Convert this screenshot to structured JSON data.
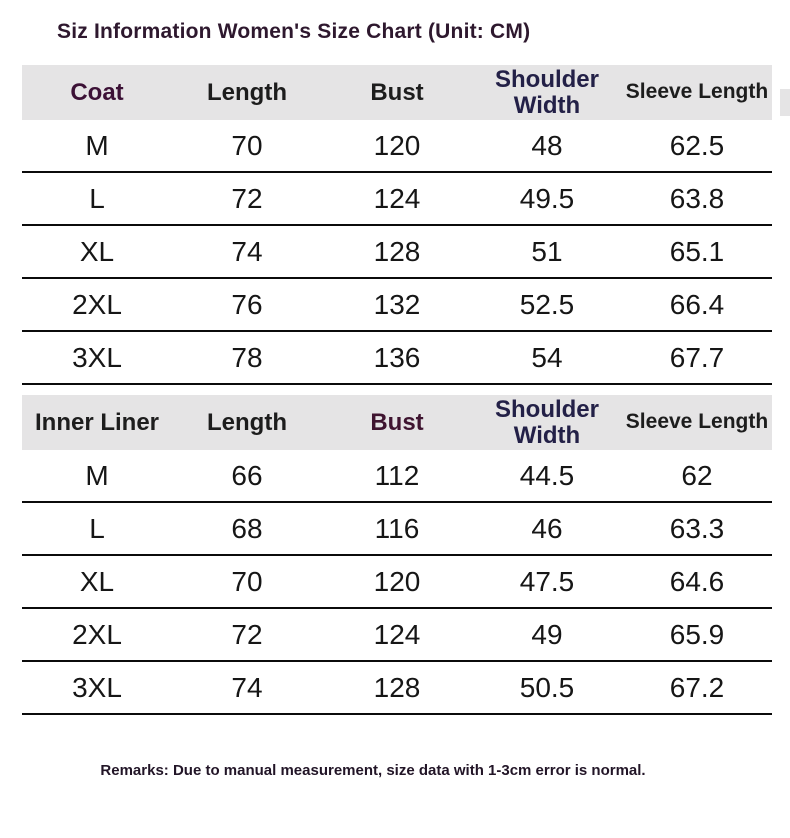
{
  "title": "Siz Information Women's Size Chart (Unit: CM)",
  "remarks": "Remarks: Due to manual measurement, size data with 1-3cm error is normal.",
  "colors": {
    "header_row_bg": "#e5e4e5",
    "title_text": "#2e182e",
    "row_line": "#0b0b0b",
    "data_text": "#161616",
    "coat_header_text": "#3c1136",
    "inner_liner_header_text": "#1d1d1d",
    "shoulder_width_header_text": "#232047",
    "bust_inner_header_text": "#3f1430",
    "black_header_text": "#1d1d1d"
  },
  "tables": [
    {
      "headers": [
        {
          "label": "Coat",
          "color": "#3c1136"
        },
        {
          "label": "Length",
          "color": "#1d1d1d"
        },
        {
          "label": "Bust",
          "color": "#1d1d1d"
        },
        {
          "label": "Shoulder Width",
          "color": "#232047"
        },
        {
          "label": "Sleeve Length",
          "color": "#1d1d1d"
        }
      ],
      "rows": [
        [
          "M",
          "70",
          "120",
          "48",
          "62.5"
        ],
        [
          "L",
          "72",
          "124",
          "49.5",
          "63.8"
        ],
        [
          "XL",
          "74",
          "128",
          "51",
          "65.1"
        ],
        [
          "2XL",
          "76",
          "132",
          "52.5",
          "66.4"
        ],
        [
          "3XL",
          "78",
          "136",
          "54",
          "67.7"
        ]
      ]
    },
    {
      "headers": [
        {
          "label": "Inner Liner",
          "color": "#1d1d1d"
        },
        {
          "label": "Length",
          "color": "#1d1d1d"
        },
        {
          "label": "Bust",
          "color": "#3f1430"
        },
        {
          "label": "Shoulder Width",
          "color": "#232047"
        },
        {
          "label": "Sleeve Length",
          "color": "#1d1d1d"
        }
      ],
      "rows": [
        [
          "M",
          "66",
          "112",
          "44.5",
          "62"
        ],
        [
          "L",
          "68",
          "116",
          "46",
          "63.3"
        ],
        [
          "XL",
          "70",
          "120",
          "47.5",
          "64.6"
        ],
        [
          "2XL",
          "72",
          "124",
          "49",
          "65.9"
        ],
        [
          "3XL",
          "74",
          "128",
          "50.5",
          "67.2"
        ]
      ]
    }
  ]
}
